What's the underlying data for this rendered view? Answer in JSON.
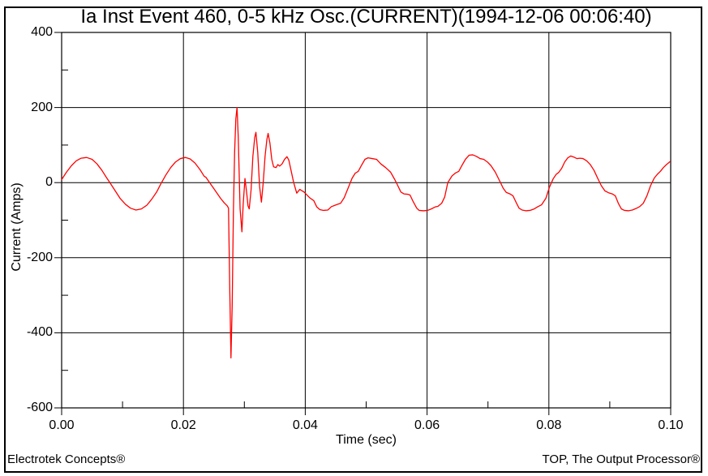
{
  "title": "Ia Inst Event 460, 0-5 kHz Osc.(CURRENT)(1994-12-06 00:06:40)",
  "footer": {
    "left": "Electrotek Concepts®",
    "right": "TOP, The Output Processor®"
  },
  "colors": {
    "waveform": "#ff0000",
    "grid": "#000000",
    "text": "#000000",
    "background": "#ffffff"
  },
  "chart_data": {
    "type": "line",
    "title": "Ia Inst Event 460, 0-5 kHz Osc.(CURRENT)(1994-12-06 00:06:40)",
    "xlabel": "Time (sec)",
    "ylabel": "Current (Amps)",
    "xlim": [
      0,
      0.1
    ],
    "ylim": [
      -600,
      400
    ],
    "grid": true,
    "legend": "none",
    "x_major_ticks": [
      0.0,
      0.02,
      0.04,
      0.06,
      0.08,
      0.1
    ],
    "x_major_tick_labels": [
      "0.00",
      "0.02",
      "0.04",
      "0.06",
      "0.08",
      "0.10"
    ],
    "x_minor_ticks": [
      0.01,
      0.03,
      0.05,
      0.07,
      0.09
    ],
    "y_major_ticks": [
      400,
      200,
      0,
      -200,
      -400,
      -600
    ],
    "y_major_tick_labels": [
      "400",
      "200",
      "0",
      "-200",
      "-400",
      "-600"
    ],
    "y_minor_ticks": [
      300,
      100,
      -100,
      -300,
      -500
    ],
    "x_gridlines": [
      0.02,
      0.04,
      0.06,
      0.08
    ],
    "y_gridlines": [
      200,
      0,
      -200,
      -400
    ],
    "series": [
      {
        "name": "Ia Inst",
        "color": "#ff0000",
        "points": [
          [
            0.0,
            8
          ],
          [
            0.0008,
            28
          ],
          [
            0.0016,
            45
          ],
          [
            0.0024,
            58
          ],
          [
            0.0032,
            65
          ],
          [
            0.0041,
            67
          ],
          [
            0.005,
            62
          ],
          [
            0.0058,
            50
          ],
          [
            0.0066,
            33
          ],
          [
            0.0073,
            15
          ],
          [
            0.008,
            -2
          ],
          [
            0.0088,
            -22
          ],
          [
            0.0096,
            -42
          ],
          [
            0.0105,
            -58
          ],
          [
            0.0113,
            -68
          ],
          [
            0.0122,
            -73
          ],
          [
            0.0131,
            -70
          ],
          [
            0.014,
            -60
          ],
          [
            0.0148,
            -44
          ],
          [
            0.0156,
            -25
          ],
          [
            0.0163,
            -3
          ],
          [
            0.0171,
            20
          ],
          [
            0.0179,
            40
          ],
          [
            0.0187,
            55
          ],
          [
            0.0195,
            64
          ],
          [
            0.0203,
            67
          ],
          [
            0.0211,
            63
          ],
          [
            0.0219,
            52
          ],
          [
            0.0227,
            35
          ],
          [
            0.0234,
            17
          ],
          [
            0.0237,
            14
          ],
          [
            0.0243,
            0
          ],
          [
            0.0249,
            -14
          ],
          [
            0.0255,
            -28
          ],
          [
            0.0261,
            -42
          ],
          [
            0.0267,
            -54
          ],
          [
            0.0272,
            -62
          ],
          [
            0.0274,
            -68
          ],
          [
            0.0276,
            -280
          ],
          [
            0.0278,
            -467
          ],
          [
            0.028,
            -330
          ],
          [
            0.0282,
            -80
          ],
          [
            0.0284,
            80
          ],
          [
            0.0286,
            170
          ],
          [
            0.0288,
            200
          ],
          [
            0.029,
            120
          ],
          [
            0.0293,
            -70
          ],
          [
            0.0296,
            -131
          ],
          [
            0.0298,
            -60
          ],
          [
            0.0301,
            11
          ],
          [
            0.0304,
            -30
          ],
          [
            0.0306,
            -62
          ],
          [
            0.0308,
            -70
          ],
          [
            0.0311,
            -20
          ],
          [
            0.0314,
            70
          ],
          [
            0.0317,
            120
          ],
          [
            0.0319,
            134
          ],
          [
            0.0322,
            80
          ],
          [
            0.0325,
            -10
          ],
          [
            0.0328,
            -52
          ],
          [
            0.0331,
            0
          ],
          [
            0.0334,
            70
          ],
          [
            0.0337,
            115
          ],
          [
            0.0339,
            131
          ],
          [
            0.0342,
            105
          ],
          [
            0.0345,
            62
          ],
          [
            0.0348,
            42
          ],
          [
            0.0352,
            40
          ],
          [
            0.0355,
            48
          ],
          [
            0.0358,
            44
          ],
          [
            0.0362,
            50
          ],
          [
            0.0366,
            62
          ],
          [
            0.037,
            69
          ],
          [
            0.0373,
            60
          ],
          [
            0.0377,
            30
          ],
          [
            0.0381,
            0
          ],
          [
            0.0386,
            -28
          ],
          [
            0.0391,
            -18
          ],
          [
            0.0398,
            -25
          ],
          [
            0.0407,
            -40
          ],
          [
            0.0414,
            -48
          ],
          [
            0.0419,
            -65
          ],
          [
            0.0424,
            -72
          ],
          [
            0.043,
            -74
          ],
          [
            0.0437,
            -73
          ],
          [
            0.0443,
            -64
          ],
          [
            0.0451,
            -59
          ],
          [
            0.0458,
            -55
          ],
          [
            0.0464,
            -40
          ],
          [
            0.0471,
            -12
          ],
          [
            0.0477,
            12
          ],
          [
            0.0482,
            25
          ],
          [
            0.0487,
            30
          ],
          [
            0.0492,
            45
          ],
          [
            0.0498,
            62
          ],
          [
            0.0503,
            66
          ],
          [
            0.051,
            64
          ],
          [
            0.0517,
            62
          ],
          [
            0.0524,
            50
          ],
          [
            0.0532,
            40
          ],
          [
            0.054,
            28
          ],
          [
            0.0547,
            8
          ],
          [
            0.0551,
            -5
          ],
          [
            0.0557,
            -25
          ],
          [
            0.0562,
            -30
          ],
          [
            0.0568,
            -31
          ],
          [
            0.0572,
            -33
          ],
          [
            0.0577,
            -50
          ],
          [
            0.0583,
            -68
          ],
          [
            0.0587,
            -74
          ],
          [
            0.0594,
            -75
          ],
          [
            0.0601,
            -74
          ],
          [
            0.0607,
            -70
          ],
          [
            0.0613,
            -65
          ],
          [
            0.0618,
            -63
          ],
          [
            0.0624,
            -55
          ],
          [
            0.0629,
            -38
          ],
          [
            0.0634,
            0
          ],
          [
            0.0641,
            18
          ],
          [
            0.0647,
            26
          ],
          [
            0.0652,
            30
          ],
          [
            0.0657,
            45
          ],
          [
            0.0663,
            62
          ],
          [
            0.0669,
            73
          ],
          [
            0.0675,
            74
          ],
          [
            0.0681,
            70
          ],
          [
            0.0687,
            64
          ],
          [
            0.0693,
            62
          ],
          [
            0.0699,
            55
          ],
          [
            0.0705,
            45
          ],
          [
            0.0712,
            28
          ],
          [
            0.0719,
            5
          ],
          [
            0.0725,
            -15
          ],
          [
            0.073,
            -26
          ],
          [
            0.0736,
            -30
          ],
          [
            0.0741,
            -35
          ],
          [
            0.0746,
            -52
          ],
          [
            0.0751,
            -68
          ],
          [
            0.0756,
            -73
          ],
          [
            0.0762,
            -75
          ],
          [
            0.0769,
            -74
          ],
          [
            0.0776,
            -70
          ],
          [
            0.0782,
            -64
          ],
          [
            0.0788,
            -59
          ],
          [
            0.0795,
            -42
          ],
          [
            0.0801,
            -12
          ],
          [
            0.0807,
            10
          ],
          [
            0.0812,
            22
          ],
          [
            0.0816,
            27
          ],
          [
            0.0821,
            38
          ],
          [
            0.0826,
            55
          ],
          [
            0.0831,
            66
          ],
          [
            0.0836,
            71
          ],
          [
            0.0841,
            68
          ],
          [
            0.0846,
            64
          ],
          [
            0.0851,
            65
          ],
          [
            0.0856,
            64
          ],
          [
            0.0862,
            58
          ],
          [
            0.0868,
            48
          ],
          [
            0.0874,
            33
          ],
          [
            0.088,
            12
          ],
          [
            0.0886,
            -8
          ],
          [
            0.0892,
            -22
          ],
          [
            0.0898,
            -27
          ],
          [
            0.0904,
            -30
          ],
          [
            0.0909,
            -35
          ],
          [
            0.0914,
            -55
          ],
          [
            0.0919,
            -70
          ],
          [
            0.0924,
            -74
          ],
          [
            0.0931,
            -75
          ],
          [
            0.0937,
            -73
          ],
          [
            0.0943,
            -69
          ],
          [
            0.0949,
            -64
          ],
          [
            0.0955,
            -55
          ],
          [
            0.0961,
            -35
          ],
          [
            0.0967,
            -8
          ],
          [
            0.0973,
            12
          ],
          [
            0.0978,
            22
          ],
          [
            0.0983,
            30
          ],
          [
            0.0988,
            40
          ],
          [
            0.0993,
            48
          ],
          [
            0.0999,
            56
          ]
        ]
      }
    ]
  }
}
